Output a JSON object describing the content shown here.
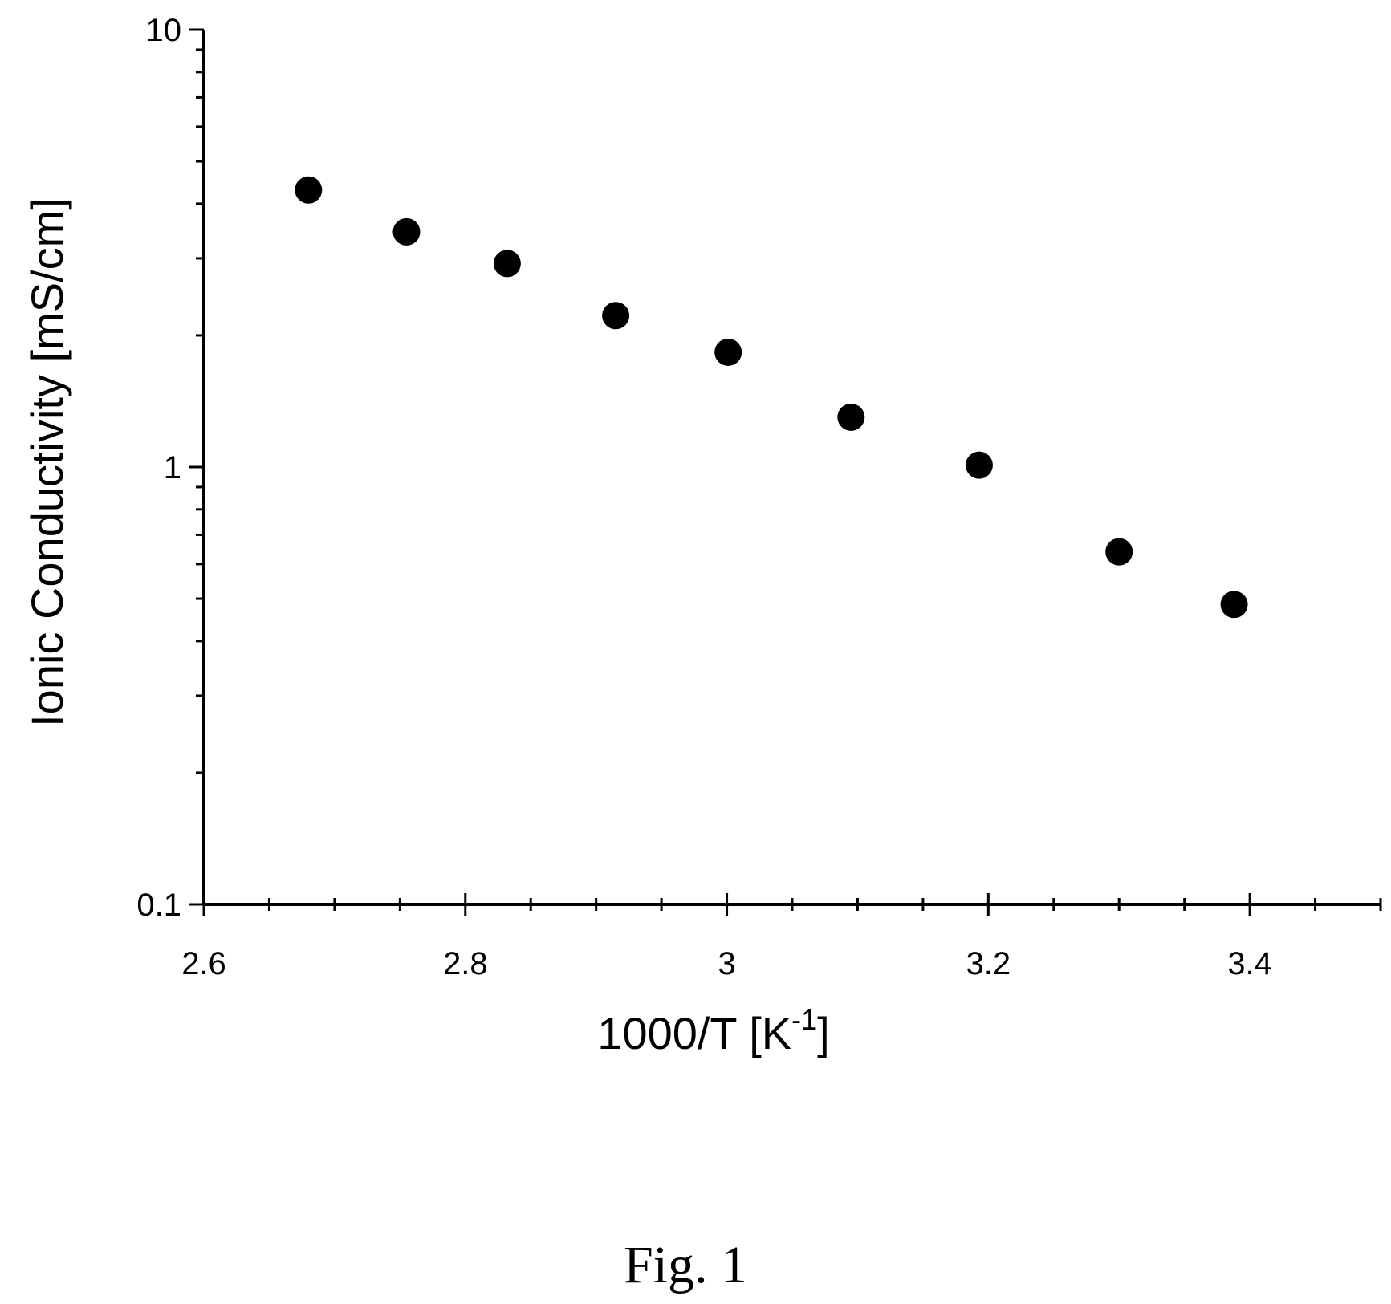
{
  "chart_data": {
    "type": "scatter",
    "title": "",
    "xlabel": "1000/T [K",
    "xlabel_superscript": "-1",
    "xlabel_suffix": "]",
    "ylabel": "Ionic Conductivity [mS/cm]",
    "xlim": [
      2.6,
      3.5
    ],
    "ylim": [
      0.1,
      10
    ],
    "yscale": "log",
    "grid": false,
    "legend": "none",
    "x_ticks": [
      "2.6",
      "2.8",
      "3",
      "3.2",
      "3.4"
    ],
    "y_ticks": [
      "0.1",
      "1",
      "10"
    ],
    "marker_color": "#000000",
    "series": [
      {
        "x": [
          2.68,
          2.755,
          2.832,
          2.915,
          3.001,
          3.095,
          3.193,
          3.3,
          3.388
        ],
        "y": [
          4.3,
          3.45,
          2.92,
          2.22,
          1.83,
          1.3,
          1.01,
          0.64,
          0.485
        ]
      }
    ]
  },
  "caption": "Fig. 1"
}
